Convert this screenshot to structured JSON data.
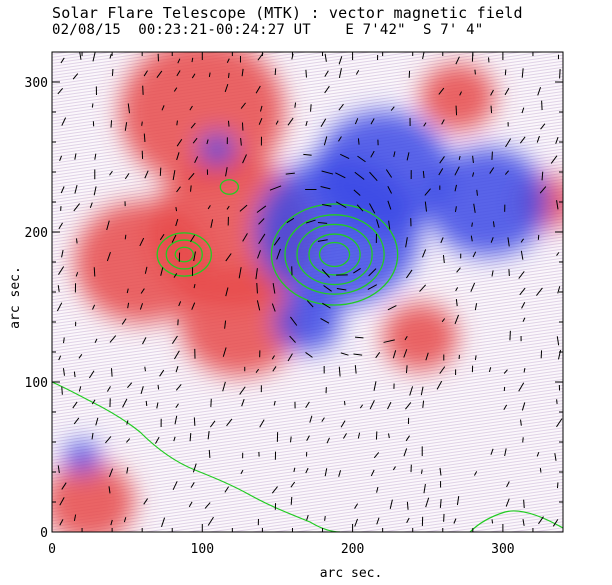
{
  "header": {
    "line1": "Solar Flare Telescope (MTK) : vector magnetic field",
    "line2": "02/08/15  00:23:21-00:24:27 UT    E 7'42\"  S 7' 4\""
  },
  "chart_data": {
    "type": "heatmap",
    "title": "Solar Flare Telescope (MTK) : vector magnetic field",
    "subtitle": "02/08/15  00:23:21-00:24:27 UT    E 7'42\"  S 7' 4\"",
    "xlabel": "arc sec.",
    "ylabel": "arc sec.",
    "xlim": [
      0,
      340
    ],
    "ylim": [
      0,
      320
    ],
    "xticks": [
      0,
      100,
      200,
      300
    ],
    "yticks": [
      0,
      100,
      200,
      300
    ],
    "grid": false,
    "colors": {
      "positive_polarity": "#e84a4a",
      "negative_polarity": "#3c4ae6",
      "contour": "#22cc22",
      "vectors": "#000000"
    },
    "regions": [
      {
        "polarity": "positive",
        "cx": 100,
        "cy": 280,
        "r": 55
      },
      {
        "polarity": "positive",
        "cx": 120,
        "cy": 200,
        "r": 55
      },
      {
        "polarity": "positive",
        "cx": 60,
        "cy": 180,
        "r": 45
      },
      {
        "polarity": "positive",
        "cx": 125,
        "cy": 140,
        "r": 40
      },
      {
        "polarity": "positive",
        "cx": 270,
        "cy": 290,
        "r": 25
      },
      {
        "polarity": "positive",
        "cx": 330,
        "cy": 220,
        "r": 20
      },
      {
        "polarity": "positive",
        "cx": 25,
        "cy": 20,
        "r": 30
      },
      {
        "polarity": "positive",
        "cx": 245,
        "cy": 130,
        "r": 25
      },
      {
        "polarity": "negative",
        "cx": 190,
        "cy": 200,
        "r": 55
      },
      {
        "polarity": "negative",
        "cx": 220,
        "cy": 240,
        "r": 45
      },
      {
        "polarity": "negative",
        "cx": 290,
        "cy": 220,
        "r": 40
      },
      {
        "polarity": "negative",
        "cx": 170,
        "cy": 140,
        "r": 22
      },
      {
        "polarity": "negative",
        "cx": 110,
        "cy": 255,
        "r": 12
      },
      {
        "polarity": "negative",
        "cx": 20,
        "cy": 50,
        "r": 12
      }
    ],
    "contours": [
      {
        "cx": 188,
        "cy": 185,
        "levels": [
          10,
          17,
          25,
          33,
          42
        ]
      },
      {
        "cx": 88,
        "cy": 185,
        "levels": [
          6,
          12,
          18
        ]
      },
      {
        "cx": 118,
        "cy": 230,
        "levels": [
          6
        ]
      }
    ]
  }
}
